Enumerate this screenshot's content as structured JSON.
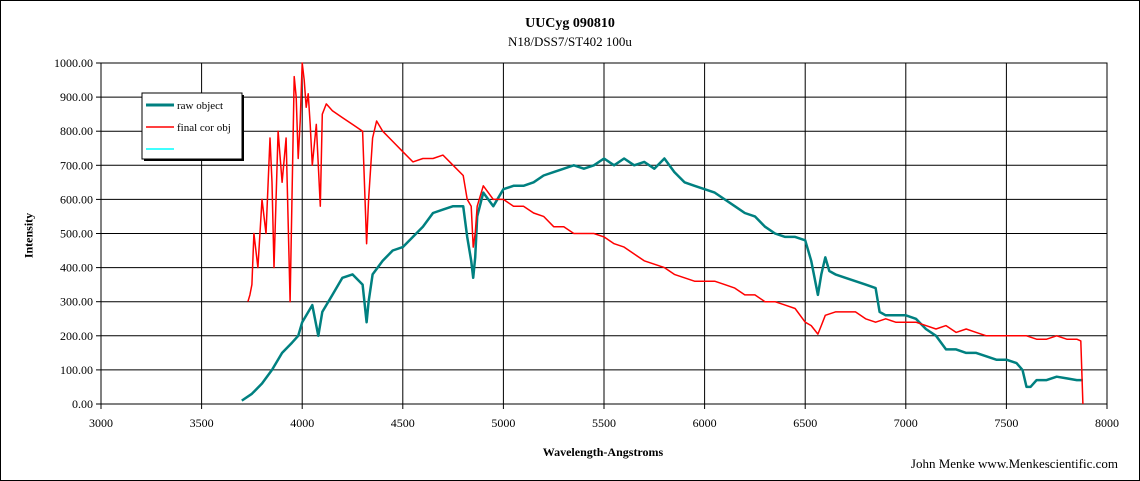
{
  "chart_data": {
    "type": "line",
    "title": "UUCyg 090810",
    "subtitle": "N18/DSS7/ST402  100u",
    "xlabel": "Wavelength-Angstroms",
    "ylabel": "Intensity",
    "credit": "John Menke www.Menkescientific.com",
    "xlim": [
      3000,
      8000
    ],
    "ylim": [
      0,
      1000
    ],
    "x_ticks": [
      "3000",
      "3500",
      "4000",
      "4500",
      "5000",
      "5500",
      "6000",
      "6500",
      "7000",
      "7500",
      "8000"
    ],
    "y_ticks": [
      "0.00",
      "100.00",
      "200.00",
      "300.00",
      "400.00",
      "500.00",
      "600.00",
      "700.00",
      "800.00",
      "900.00",
      "1000.00"
    ],
    "grid": true,
    "legend_position": "top-left",
    "legend": [
      "raw object",
      "final cor obj",
      ""
    ],
    "series": [
      {
        "name": "raw object",
        "color": "#008080",
        "x": [
          3700,
          3750,
          3800,
          3850,
          3900,
          3950,
          3980,
          4000,
          4050,
          4080,
          4100,
          4150,
          4200,
          4250,
          4300,
          4320,
          4330,
          4350,
          4400,
          4450,
          4500,
          4550,
          4600,
          4650,
          4700,
          4750,
          4800,
          4820,
          4840,
          4850,
          4860,
          4870,
          4900,
          4950,
          5000,
          5050,
          5100,
          5150,
          5200,
          5250,
          5300,
          5350,
          5400,
          5450,
          5500,
          5550,
          5600,
          5650,
          5700,
          5750,
          5800,
          5850,
          5900,
          5950,
          6000,
          6050,
          6100,
          6150,
          6200,
          6250,
          6300,
          6350,
          6400,
          6450,
          6500,
          6530,
          6563,
          6580,
          6600,
          6620,
          6650,
          6700,
          6750,
          6800,
          6850,
          6870,
          6900,
          6950,
          7000,
          7050,
          7100,
          7150,
          7200,
          7250,
          7300,
          7350,
          7400,
          7450,
          7500,
          7550,
          7580,
          7600,
          7620,
          7650,
          7700,
          7750,
          7800,
          7850,
          7880
        ],
        "y": [
          10,
          30,
          60,
          100,
          150,
          180,
          200,
          240,
          290,
          200,
          270,
          320,
          370,
          380,
          350,
          240,
          300,
          380,
          420,
          450,
          460,
          490,
          520,
          560,
          570,
          580,
          580,
          490,
          420,
          370,
          430,
          550,
          620,
          580,
          630,
          640,
          640,
          650,
          670,
          680,
          690,
          700,
          690,
          700,
          720,
          700,
          720,
          700,
          710,
          690,
          720,
          680,
          650,
          640,
          630,
          620,
          600,
          580,
          560,
          550,
          520,
          500,
          490,
          490,
          480,
          420,
          320,
          380,
          430,
          390,
          380,
          370,
          360,
          350,
          340,
          270,
          260,
          260,
          260,
          250,
          220,
          200,
          160,
          160,
          150,
          150,
          140,
          130,
          130,
          120,
          100,
          50,
          50,
          70,
          70,
          80,
          75,
          70,
          70
        ]
      },
      {
        "name": "final cor obj",
        "color": "#ff0000",
        "x": [
          3730,
          3740,
          3750,
          3760,
          3780,
          3800,
          3820,
          3840,
          3850,
          3860,
          3880,
          3900,
          3920,
          3940,
          3960,
          3970,
          3980,
          3990,
          4000,
          4010,
          4020,
          4030,
          4040,
          4050,
          4070,
          4090,
          4100,
          4120,
          4150,
          4200,
          4250,
          4300,
          4320,
          4330,
          4350,
          4370,
          4400,
          4450,
          4500,
          4550,
          4600,
          4650,
          4700,
          4750,
          4800,
          4820,
          4840,
          4850,
          4860,
          4870,
          4900,
          4950,
          5000,
          5050,
          5100,
          5150,
          5200,
          5250,
          5300,
          5350,
          5400,
          5450,
          5500,
          5550,
          5600,
          5650,
          5700,
          5750,
          5800,
          5850,
          5900,
          5950,
          6000,
          6050,
          6100,
          6150,
          6200,
          6250,
          6300,
          6350,
          6400,
          6450,
          6500,
          6530,
          6563,
          6580,
          6600,
          6650,
          6700,
          6750,
          6800,
          6850,
          6900,
          6950,
          7000,
          7050,
          7100,
          7150,
          7200,
          7250,
          7300,
          7350,
          7400,
          7450,
          7500,
          7550,
          7600,
          7650,
          7700,
          7750,
          7800,
          7850,
          7870,
          7880
        ],
        "y": [
          300,
          320,
          350,
          500,
          400,
          600,
          500,
          780,
          650,
          400,
          800,
          650,
          780,
          300,
          960,
          900,
          720,
          830,
          1000,
          950,
          870,
          910,
          820,
          700,
          820,
          580,
          850,
          880,
          860,
          840,
          820,
          800,
          470,
          600,
          780,
          830,
          800,
          770,
          740,
          710,
          720,
          720,
          730,
          700,
          670,
          600,
          580,
          460,
          500,
          580,
          640,
          600,
          600,
          580,
          580,
          560,
          550,
          520,
          520,
          500,
          500,
          500,
          490,
          470,
          460,
          440,
          420,
          410,
          400,
          380,
          370,
          360,
          360,
          360,
          350,
          340,
          320,
          320,
          300,
          300,
          290,
          280,
          240,
          230,
          205,
          230,
          260,
          270,
          270,
          270,
          250,
          240,
          250,
          240,
          240,
          240,
          230,
          220,
          230,
          210,
          220,
          210,
          200,
          200,
          200,
          200,
          200,
          190,
          190,
          200,
          190,
          190,
          185,
          0
        ]
      },
      {
        "name": "",
        "color": "#00ffff",
        "x": [],
        "y": []
      }
    ]
  }
}
